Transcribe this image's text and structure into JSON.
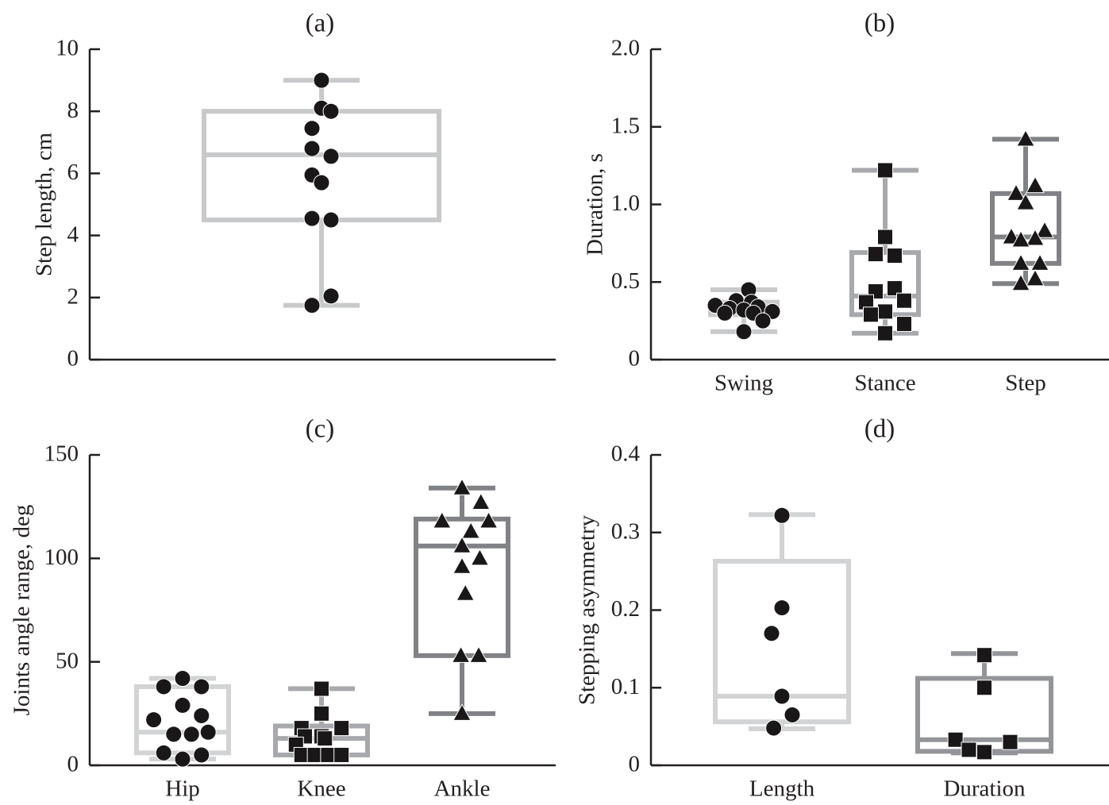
{
  "chart_data": [
    {
      "id": "a",
      "type": "box",
      "title": "(a)",
      "xlabel": "",
      "ylabel": "Step length, cm",
      "ylim": [
        0,
        10
      ],
      "yticks": [
        0,
        2,
        4,
        6,
        8,
        10
      ],
      "ytick_labels": [
        "0",
        "2",
        "4",
        "6",
        "8",
        "10"
      ],
      "categories": [
        ""
      ],
      "series": [
        {
          "name": "Step length",
          "color": "#c8c9cb",
          "marker": "circle",
          "box": {
            "whisker_low": 1.75,
            "q1": 4.5,
            "median": 6.6,
            "q3": 8.0,
            "whisker_high": 9.0
          },
          "points": [
            9.0,
            8.1,
            8.0,
            7.45,
            6.8,
            6.55,
            5.95,
            5.7,
            4.55,
            4.5,
            2.05,
            1.75
          ]
        }
      ]
    },
    {
      "id": "b",
      "type": "box",
      "title": "(b)",
      "xlabel": "",
      "ylabel": "Duration, s",
      "ylim": [
        0,
        2.0
      ],
      "yticks": [
        0,
        0.5,
        1.0,
        1.5,
        2.0
      ],
      "ytick_labels": [
        "0",
        "0.5",
        "1.0",
        "1.5",
        "2.0"
      ],
      "categories": [
        "Swing",
        "Stance",
        "Step"
      ],
      "series": [
        {
          "name": "Swing",
          "color": "#c8c9cb",
          "marker": "circle",
          "box": {
            "whisker_low": 0.18,
            "q1": 0.29,
            "median": 0.34,
            "q3": 0.37,
            "whisker_high": 0.45
          },
          "points": [
            0.45,
            0.38,
            0.37,
            0.35,
            0.34,
            0.33,
            0.32,
            0.31,
            0.3,
            0.3,
            0.25,
            0.18
          ]
        },
        {
          "name": "Stance",
          "color": "#a7a9ac",
          "marker": "square",
          "box": {
            "whisker_low": 0.17,
            "q1": 0.29,
            "median": 0.41,
            "q3": 0.69,
            "whisker_high": 1.22
          },
          "points": [
            1.22,
            0.79,
            0.68,
            0.67,
            0.46,
            0.44,
            0.38,
            0.37,
            0.31,
            0.29,
            0.23,
            0.17
          ]
        },
        {
          "name": "Step",
          "color": "#808285",
          "marker": "triangle",
          "box": {
            "whisker_low": 0.49,
            "q1": 0.62,
            "median": 0.79,
            "q3": 1.07,
            "whisker_high": 1.42
          },
          "points": [
            1.42,
            1.12,
            1.07,
            1.01,
            0.83,
            0.79,
            0.78,
            0.77,
            0.62,
            0.62,
            0.52,
            0.49
          ]
        }
      ]
    },
    {
      "id": "c",
      "type": "box",
      "title": "(c)",
      "xlabel": "",
      "ylabel": "Joints angle range, deg",
      "ylim": [
        0,
        150
      ],
      "yticks": [
        0,
        50,
        100,
        150
      ],
      "ytick_labels": [
        "0",
        "50",
        "100",
        "150"
      ],
      "categories": [
        "Hip",
        "Knee",
        "Ankle"
      ],
      "series": [
        {
          "name": "Hip",
          "color": "#d1d3d4",
          "marker": "circle",
          "box": {
            "whisker_low": 3,
            "q1": 6,
            "median": 16,
            "q3": 38,
            "whisker_high": 42
          },
          "points": [
            42,
            38,
            38,
            29,
            24,
            22,
            16,
            15,
            15,
            6,
            5,
            3
          ]
        },
        {
          "name": "Knee",
          "color": "#a7a9ac",
          "marker": "square",
          "box": {
            "whisker_low": 5,
            "q1": 5,
            "median": 13,
            "q3": 19,
            "whisker_high": 37
          },
          "points": [
            37,
            25,
            18,
            18,
            14,
            14,
            13,
            10,
            5,
            5,
            5,
            5
          ]
        },
        {
          "name": "Ankle",
          "color": "#808285",
          "marker": "triangle",
          "box": {
            "whisker_low": 25,
            "q1": 53,
            "median": 106,
            "q3": 119,
            "whisker_high": 134
          },
          "points": [
            134,
            127,
            118,
            118,
            113,
            106,
            100,
            96,
            83,
            53,
            53,
            25
          ]
        }
      ]
    },
    {
      "id": "d",
      "type": "box",
      "title": "(d)",
      "xlabel": "",
      "ylabel": "Stepping asymmetry",
      "ylim": [
        0,
        0.4
      ],
      "yticks": [
        0,
        0.1,
        0.2,
        0.3,
        0.4
      ],
      "ytick_labels": [
        "0",
        "0.1",
        "0.2",
        "0.3",
        "0.4"
      ],
      "categories": [
        "Length",
        "Duration"
      ],
      "series": [
        {
          "name": "Length",
          "color": "#d1d3d4",
          "marker": "circle",
          "box": {
            "whisker_low": 0.047,
            "q1": 0.056,
            "median": 0.089,
            "q3": 0.263,
            "whisker_high": 0.323
          },
          "points": [
            0.322,
            0.203,
            0.17,
            0.089,
            0.065,
            0.048
          ]
        },
        {
          "name": "Duration",
          "color": "#939598",
          "marker": "square",
          "box": {
            "whisker_low": 0.016,
            "q1": 0.018,
            "median": 0.033,
            "q3": 0.112,
            "whisker_high": 0.144
          },
          "points": [
            0.142,
            0.1,
            0.033,
            0.03,
            0.02,
            0.017
          ]
        }
      ]
    }
  ]
}
